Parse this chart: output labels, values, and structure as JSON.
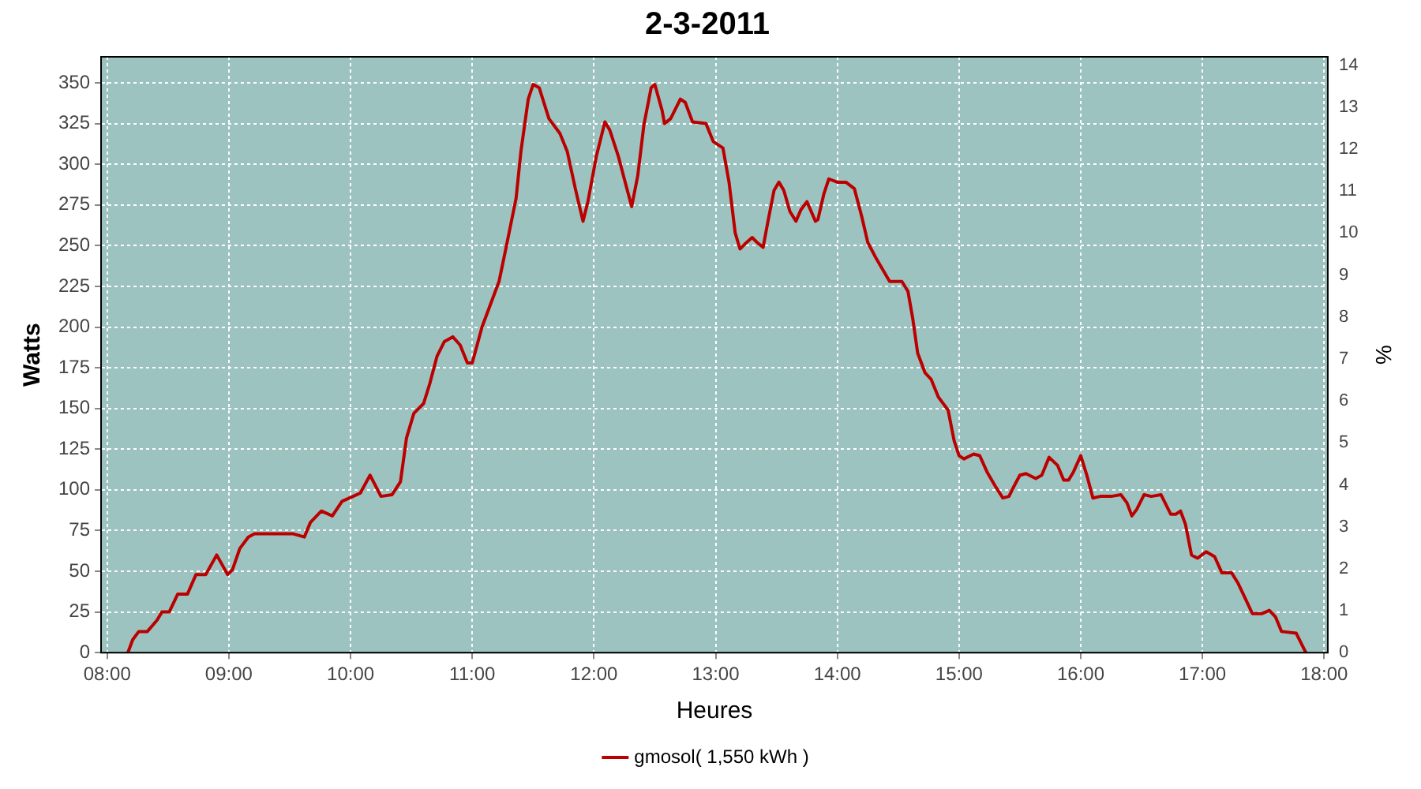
{
  "chart_data": {
    "type": "line",
    "title": "2-3-2011",
    "xlabel": "Heures",
    "ylabel": "Watts",
    "y2label": "%",
    "xlim": [
      7.95,
      18.03
    ],
    "xticks": [
      {
        "value": 8,
        "label": "08:00"
      },
      {
        "value": 9,
        "label": "09:00"
      },
      {
        "value": 10,
        "label": "10:00"
      },
      {
        "value": 11,
        "label": "11:00"
      },
      {
        "value": 12,
        "label": "12:00"
      },
      {
        "value": 13,
        "label": "13:00"
      },
      {
        "value": 14,
        "label": "14:00"
      },
      {
        "value": 15,
        "label": "15:00"
      },
      {
        "value": 16,
        "label": "16:00"
      },
      {
        "value": 17,
        "label": "17:00"
      },
      {
        "value": 18,
        "label": "18:00"
      }
    ],
    "ylim": [
      0,
      366
    ],
    "yticks": [
      0,
      25,
      50,
      75,
      100,
      125,
      150,
      175,
      200,
      225,
      250,
      275,
      300,
      325,
      350
    ],
    "y2lim": [
      0,
      14.2
    ],
    "y2ticks": [
      0,
      1,
      2,
      3,
      4,
      5,
      6,
      7,
      8,
      9,
      10,
      11,
      12,
      13,
      14
    ],
    "grid": true,
    "legend": "bottom",
    "marker": "none",
    "line_style": "solid",
    "series": [
      {
        "name": "gmosol( 1,550 kWh )",
        "color": "#bb0000",
        "x": [
          8.17,
          8.21,
          8.26,
          8.33,
          8.41,
          8.45,
          8.51,
          8.58,
          8.66,
          8.73,
          8.81,
          8.9,
          8.99,
          9.03,
          9.09,
          9.16,
          9.21,
          9.34,
          9.53,
          9.62,
          9.67,
          9.76,
          9.85,
          9.93,
          10.02,
          10.08,
          10.16,
          10.25,
          10.34,
          10.41,
          10.46,
          10.52,
          10.6,
          10.65,
          10.71,
          10.77,
          10.84,
          10.9,
          10.96,
          11.0,
          11.08,
          11.14,
          11.22,
          11.27,
          11.36,
          11.4,
          11.46,
          11.5,
          11.55,
          11.63,
          11.72,
          11.78,
          11.85,
          11.91,
          11.95,
          12.02,
          12.09,
          12.13,
          12.2,
          12.26,
          12.31,
          12.36,
          12.41,
          12.47,
          12.5,
          12.56,
          12.58,
          12.63,
          12.71,
          12.75,
          12.81,
          12.92,
          12.98,
          13.06,
          13.11,
          13.16,
          13.2,
          13.24,
          13.3,
          13.34,
          13.39,
          13.43,
          13.48,
          13.52,
          13.56,
          13.61,
          13.66,
          13.7,
          13.75,
          13.82,
          13.84,
          13.89,
          13.93,
          14.0,
          14.07,
          14.14,
          14.2,
          14.25,
          14.32,
          14.43,
          14.53,
          14.58,
          14.62,
          14.66,
          14.72,
          14.77,
          14.83,
          14.91,
          14.96,
          15.0,
          15.04,
          15.12,
          15.17,
          15.23,
          15.3,
          15.36,
          15.41,
          15.45,
          15.5,
          15.55,
          15.63,
          15.68,
          15.74,
          15.81,
          15.86,
          15.9,
          15.94,
          16.0,
          16.05,
          16.1,
          16.16,
          16.25,
          16.33,
          16.38,
          16.42,
          16.46,
          16.52,
          16.58,
          16.66,
          16.74,
          16.78,
          16.82,
          16.86,
          16.91,
          16.96,
          17.03,
          17.1,
          17.16,
          17.24,
          17.29,
          17.36,
          17.41,
          17.49,
          17.55,
          17.6,
          17.65,
          17.77,
          17.81,
          17.85
        ],
        "values": [
          0,
          8,
          13,
          13,
          20,
          25,
          25,
          36,
          36,
          48,
          48,
          60,
          48,
          51,
          64,
          71,
          73,
          73,
          73,
          71,
          80,
          87,
          84,
          93,
          96,
          98,
          109,
          96,
          97,
          105,
          132,
          147,
          153,
          165,
          182,
          191,
          194,
          189,
          178,
          178,
          200,
          212,
          228,
          246,
          279,
          308,
          340,
          349,
          347,
          328,
          319,
          308,
          284,
          265,
          277,
          305,
          326,
          321,
          305,
          288,
          274,
          293,
          324,
          347,
          349,
          333,
          325,
          328,
          340,
          338,
          326,
          325,
          314,
          310,
          289,
          258,
          248,
          251,
          255,
          252,
          249,
          265,
          284,
          289,
          284,
          271,
          265,
          272,
          277,
          265,
          266,
          282,
          291,
          289,
          289,
          285,
          268,
          252,
          242,
          228,
          228,
          222,
          205,
          184,
          172,
          168,
          157,
          149,
          130,
          121,
          119,
          122,
          121,
          111,
          102,
          95,
          96,
          102,
          109,
          110,
          107,
          109,
          120,
          115,
          106,
          106,
          111,
          121,
          109,
          95,
          96,
          96,
          97,
          92,
          84,
          88,
          97,
          96,
          97,
          85,
          85,
          87,
          79,
          60,
          58,
          62,
          59,
          49,
          49,
          43,
          32,
          24,
          24,
          26,
          22,
          13,
          12,
          6,
          0
        ]
      }
    ]
  }
}
